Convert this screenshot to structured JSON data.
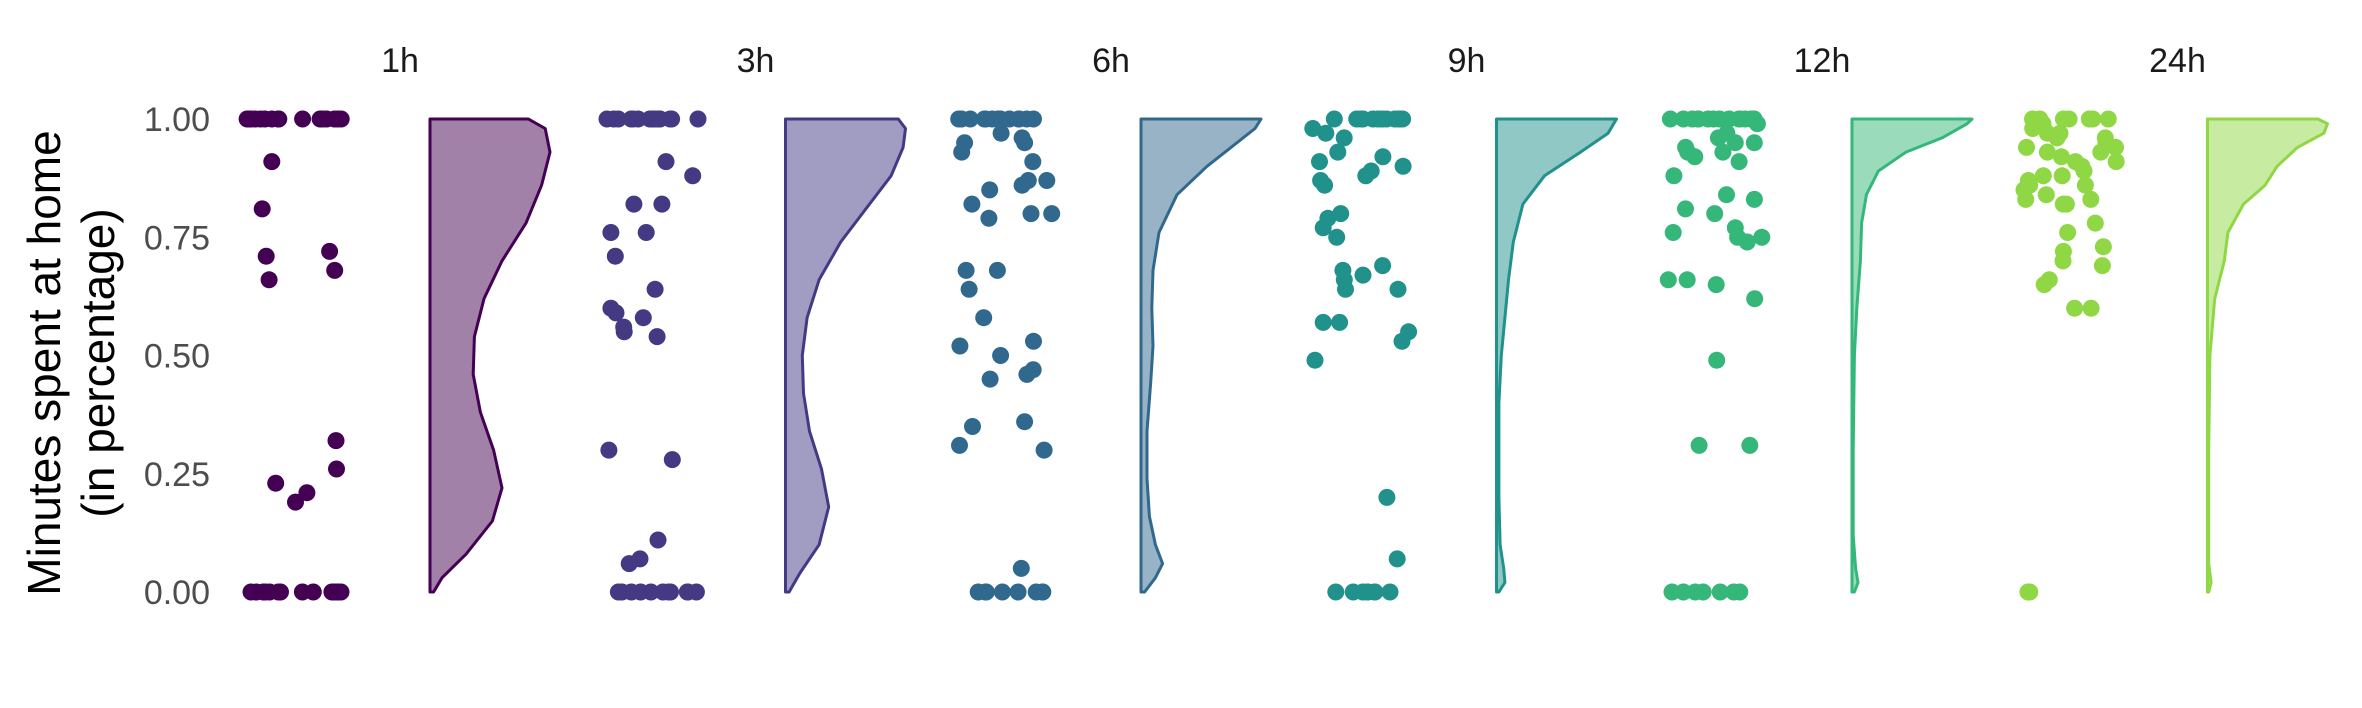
{
  "chart_data": {
    "type": "raincloud",
    "ylabel_lines": [
      "Minutes spent at home",
      "(in percentage)"
    ],
    "ylim": [
      0,
      1
    ],
    "yticks": [
      {
        "value": 0,
        "label": "0.00"
      },
      {
        "value": 0.25,
        "label": "0.25"
      },
      {
        "value": 0.5,
        "label": "0.50"
      },
      {
        "value": 0.75,
        "label": "0.75"
      },
      {
        "value": 1,
        "label": "1.00"
      }
    ],
    "grid": false,
    "legend": "none",
    "panels": [
      {
        "label": "1h",
        "color": "#440154",
        "fill": "#A281A8",
        "points": [
          1,
          1,
          1,
          1,
          1,
          1,
          1,
          1,
          1,
          1,
          1,
          1,
          1,
          1,
          1,
          1,
          1,
          1,
          0.91,
          0.81,
          0.72,
          0.71,
          0.68,
          0.66,
          0.32,
          0.26,
          0.23,
          0.21,
          0.19,
          0,
          0,
          0,
          0,
          0,
          0,
          0,
          0,
          0,
          0,
          0,
          0,
          0,
          0,
          0
        ],
        "density": [
          [
            0,
            0.03
          ],
          [
            0.03,
            0.1
          ],
          [
            0.08,
            0.3
          ],
          [
            0.15,
            0.52
          ],
          [
            0.22,
            0.6
          ],
          [
            0.3,
            0.53
          ],
          [
            0.38,
            0.42
          ],
          [
            0.46,
            0.36
          ],
          [
            0.54,
            0.37
          ],
          [
            0.62,
            0.45
          ],
          [
            0.7,
            0.6
          ],
          [
            0.78,
            0.8
          ],
          [
            0.86,
            0.93
          ],
          [
            0.93,
            1
          ],
          [
            0.98,
            0.96
          ],
          [
            1,
            0.82
          ]
        ]
      },
      {
        "label": "3h",
        "color": "#443983",
        "fill": "#A19CC1",
        "points": [
          1,
          1,
          1,
          1,
          1,
          1,
          1,
          1,
          1,
          1,
          1,
          1,
          1,
          1,
          1,
          0.91,
          0.88,
          0.82,
          0.82,
          0.76,
          0.76,
          0.71,
          0.64,
          0.6,
          0.59,
          0.58,
          0.56,
          0.55,
          0.54,
          0.3,
          0.28,
          0.11,
          0.07,
          0.06,
          0,
          0,
          0,
          0,
          0,
          0,
          0,
          0,
          0,
          0,
          0
        ],
        "density": [
          [
            0,
            0.03
          ],
          [
            0.04,
            0.12
          ],
          [
            0.1,
            0.28
          ],
          [
            0.18,
            0.36
          ],
          [
            0.26,
            0.3
          ],
          [
            0.34,
            0.2
          ],
          [
            0.42,
            0.15
          ],
          [
            0.5,
            0.14
          ],
          [
            0.58,
            0.18
          ],
          [
            0.66,
            0.28
          ],
          [
            0.74,
            0.46
          ],
          [
            0.82,
            0.7
          ],
          [
            0.88,
            0.88
          ],
          [
            0.94,
            0.98
          ],
          [
            0.98,
            1
          ],
          [
            1,
            0.94
          ]
        ]
      },
      {
        "label": "6h",
        "color": "#31688E",
        "fill": "#98B3C6",
        "points": [
          1,
          1,
          1,
          1,
          1,
          1,
          1,
          1,
          1,
          1,
          1,
          1,
          1,
          1,
          0.97,
          0.96,
          0.95,
          0.95,
          0.93,
          0.91,
          0.87,
          0.87,
          0.86,
          0.85,
          0.82,
          0.8,
          0.8,
          0.79,
          0.68,
          0.68,
          0.64,
          0.58,
          0.53,
          0.52,
          0.5,
          0.47,
          0.46,
          0.45,
          0.36,
          0.35,
          0.31,
          0.3,
          0.05,
          0,
          0,
          0,
          0,
          0,
          0,
          0,
          0
        ],
        "density": [
          [
            0,
            0.03
          ],
          [
            0.03,
            0.12
          ],
          [
            0.06,
            0.18
          ],
          [
            0.1,
            0.12
          ],
          [
            0.16,
            0.07
          ],
          [
            0.24,
            0.05
          ],
          [
            0.34,
            0.05
          ],
          [
            0.44,
            0.08
          ],
          [
            0.52,
            0.1
          ],
          [
            0.6,
            0.09
          ],
          [
            0.68,
            0.1
          ],
          [
            0.76,
            0.15
          ],
          [
            0.84,
            0.3
          ],
          [
            0.9,
            0.55
          ],
          [
            0.95,
            0.8
          ],
          [
            0.98,
            0.95
          ],
          [
            1,
            1
          ]
        ]
      },
      {
        "label": "9h",
        "color": "#21918C",
        "fill": "#90C8C5",
        "points": [
          1,
          1,
          1,
          1,
          1,
          1,
          1,
          1,
          1,
          1,
          1,
          1,
          1,
          0.98,
          0.97,
          0.96,
          0.93,
          0.92,
          0.91,
          0.9,
          0.89,
          0.88,
          0.87,
          0.86,
          0.8,
          0.79,
          0.77,
          0.75,
          0.69,
          0.68,
          0.67,
          0.66,
          0.64,
          0.64,
          0.57,
          0.57,
          0.55,
          0.53,
          0.49,
          0.2,
          0.07,
          0,
          0,
          0,
          0,
          0,
          0,
          0,
          0
        ],
        "density": [
          [
            0,
            0.02
          ],
          [
            0.02,
            0.07
          ],
          [
            0.05,
            0.06
          ],
          [
            0.1,
            0.03
          ],
          [
            0.2,
            0.02
          ],
          [
            0.3,
            0.02
          ],
          [
            0.4,
            0.02
          ],
          [
            0.5,
            0.04
          ],
          [
            0.58,
            0.07
          ],
          [
            0.66,
            0.1
          ],
          [
            0.74,
            0.14
          ],
          [
            0.82,
            0.22
          ],
          [
            0.88,
            0.4
          ],
          [
            0.93,
            0.7
          ],
          [
            0.97,
            0.93
          ],
          [
            1,
            1
          ]
        ]
      },
      {
        "label": "12h",
        "color": "#35B779",
        "fill": "#9ADBBC",
        "points": [
          1,
          1,
          1,
          1,
          1,
          1,
          1,
          1,
          1,
          1,
          1,
          1,
          1,
          1,
          1,
          0.99,
          0.97,
          0.96,
          0.95,
          0.95,
          0.94,
          0.93,
          0.93,
          0.92,
          0.91,
          0.88,
          0.84,
          0.83,
          0.81,
          0.8,
          0.77,
          0.76,
          0.75,
          0.75,
          0.74,
          0.66,
          0.66,
          0.65,
          0.62,
          0.49,
          0.31,
          0.31,
          0,
          0,
          0,
          0,
          0,
          0,
          0
        ],
        "density": [
          [
            0,
            0.02
          ],
          [
            0.02,
            0.05
          ],
          [
            0.05,
            0.03
          ],
          [
            0.12,
            0.01
          ],
          [
            0.3,
            0.01
          ],
          [
            0.5,
            0.02
          ],
          [
            0.6,
            0.04
          ],
          [
            0.7,
            0.07
          ],
          [
            0.78,
            0.08
          ],
          [
            0.84,
            0.12
          ],
          [
            0.89,
            0.22
          ],
          [
            0.93,
            0.45
          ],
          [
            0.96,
            0.75
          ],
          [
            0.99,
            0.96
          ],
          [
            1,
            1
          ]
        ]
      },
      {
        "label": "24h",
        "color": "#8FD744",
        "fill": "#C7EBA1",
        "points": [
          1,
          1,
          1,
          1,
          1,
          1,
          1,
          0.99,
          0.98,
          0.97,
          0.97,
          0.96,
          0.96,
          0.95,
          0.94,
          0.94,
          0.93,
          0.93,
          0.92,
          0.91,
          0.91,
          0.9,
          0.89,
          0.88,
          0.88,
          0.87,
          0.86,
          0.86,
          0.85,
          0.84,
          0.83,
          0.83,
          0.82,
          0.82,
          0.78,
          0.76,
          0.73,
          0.72,
          0.7,
          0.69,
          0.66,
          0.65,
          0.6,
          0.6,
          0,
          0
        ],
        "density": [
          [
            0,
            0.01
          ],
          [
            0.02,
            0.03
          ],
          [
            0.06,
            0.01
          ],
          [
            0.3,
            0.01
          ],
          [
            0.5,
            0.02
          ],
          [
            0.56,
            0.04
          ],
          [
            0.62,
            0.06
          ],
          [
            0.7,
            0.14
          ],
          [
            0.76,
            0.17
          ],
          [
            0.82,
            0.3
          ],
          [
            0.86,
            0.48
          ],
          [
            0.9,
            0.58
          ],
          [
            0.94,
            0.75
          ],
          [
            0.97,
            0.97
          ],
          [
            0.99,
            1
          ],
          [
            1,
            0.92
          ]
        ]
      }
    ]
  }
}
